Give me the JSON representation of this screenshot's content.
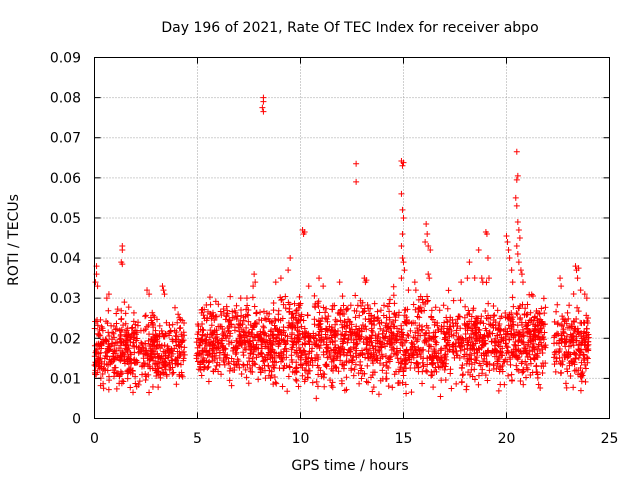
{
  "chart_data": {
    "type": "scatter",
    "title": "Day 196 of 2021, Rate Of TEC Index for receiver abpo",
    "xlabel": "GPS time / hours",
    "ylabel": "ROTI / TECUs",
    "xlim": [
      0,
      25
    ],
    "ylim": [
      0,
      0.09
    ],
    "xticks": [
      0,
      5,
      10,
      15,
      20,
      25
    ],
    "xtick_labels": [
      "0",
      "5",
      "10",
      "15",
      "20",
      "25"
    ],
    "yticks": [
      0,
      0.01,
      0.02,
      0.03,
      0.04,
      0.05,
      0.06,
      0.07,
      0.08,
      0.09
    ],
    "ytick_labels": [
      "0",
      "0.01",
      "0.02",
      "0.03",
      "0.04",
      "0.05",
      "0.06",
      "0.07",
      "0.08",
      "0.09"
    ],
    "grid": true,
    "marker": "plus",
    "color": "#ff0000",
    "segments": [
      {
        "x": [
          0.0,
          4.4
        ],
        "y_low": 0.004,
        "y_high": 0.026
      },
      {
        "x": [
          4.95,
          21.9
        ],
        "y_low": 0.004,
        "y_high": 0.03
      },
      {
        "x": [
          22.3,
          24.0
        ],
        "y_low": 0.004,
        "y_high": 0.028
      }
    ],
    "outliers": [
      {
        "x": 0.1,
        "y": 0.038
      },
      {
        "x": 0.1,
        "y": 0.036
      },
      {
        "x": 0.05,
        "y": 0.034
      },
      {
        "x": 0.15,
        "y": 0.033
      },
      {
        "x": 0.6,
        "y": 0.03
      },
      {
        "x": 0.7,
        "y": 0.031
      },
      {
        "x": 1.35,
        "y": 0.043
      },
      {
        "x": 1.35,
        "y": 0.042
      },
      {
        "x": 1.3,
        "y": 0.039
      },
      {
        "x": 1.35,
        "y": 0.0385
      },
      {
        "x": 1.45,
        "y": 0.029
      },
      {
        "x": 2.55,
        "y": 0.032
      },
      {
        "x": 2.65,
        "y": 0.031
      },
      {
        "x": 3.3,
        "y": 0.033
      },
      {
        "x": 3.35,
        "y": 0.032
      },
      {
        "x": 3.4,
        "y": 0.031
      },
      {
        "x": 7.1,
        "y": 0.03
      },
      {
        "x": 7.4,
        "y": 0.03
      },
      {
        "x": 7.75,
        "y": 0.036
      },
      {
        "x": 7.8,
        "y": 0.034
      },
      {
        "x": 7.7,
        "y": 0.033
      },
      {
        "x": 8.2,
        "y": 0.08
      },
      {
        "x": 8.2,
        "y": 0.079
      },
      {
        "x": 8.15,
        "y": 0.0775
      },
      {
        "x": 8.2,
        "y": 0.0765
      },
      {
        "x": 8.8,
        "y": 0.034
      },
      {
        "x": 9.05,
        "y": 0.035
      },
      {
        "x": 9.4,
        "y": 0.037
      },
      {
        "x": 9.5,
        "y": 0.04
      },
      {
        "x": 10.1,
        "y": 0.047
      },
      {
        "x": 10.15,
        "y": 0.046
      },
      {
        "x": 10.2,
        "y": 0.0465
      },
      {
        "x": 10.4,
        "y": 0.033
      },
      {
        "x": 10.9,
        "y": 0.035
      },
      {
        "x": 11.1,
        "y": 0.033
      },
      {
        "x": 11.9,
        "y": 0.034
      },
      {
        "x": 12.7,
        "y": 0.0635
      },
      {
        "x": 12.7,
        "y": 0.059
      },
      {
        "x": 13.1,
        "y": 0.035
      },
      {
        "x": 13.15,
        "y": 0.034
      },
      {
        "x": 13.2,
        "y": 0.0345
      },
      {
        "x": 14.9,
        "y": 0.0642
      },
      {
        "x": 15.0,
        "y": 0.0638
      },
      {
        "x": 14.95,
        "y": 0.063
      },
      {
        "x": 14.9,
        "y": 0.056
      },
      {
        "x": 14.95,
        "y": 0.052
      },
      {
        "x": 15.0,
        "y": 0.05
      },
      {
        "x": 14.95,
        "y": 0.046
      },
      {
        "x": 14.9,
        "y": 0.043
      },
      {
        "x": 14.95,
        "y": 0.04
      },
      {
        "x": 15.0,
        "y": 0.039
      },
      {
        "x": 15.05,
        "y": 0.037
      },
      {
        "x": 14.9,
        "y": 0.035
      },
      {
        "x": 15.55,
        "y": 0.034
      },
      {
        "x": 15.6,
        "y": 0.032
      },
      {
        "x": 16.1,
        "y": 0.0485
      },
      {
        "x": 16.15,
        "y": 0.046
      },
      {
        "x": 16.05,
        "y": 0.044
      },
      {
        "x": 16.2,
        "y": 0.043
      },
      {
        "x": 16.3,
        "y": 0.042
      },
      {
        "x": 16.2,
        "y": 0.036
      },
      {
        "x": 16.25,
        "y": 0.035
      },
      {
        "x": 17.8,
        "y": 0.034
      },
      {
        "x": 18.1,
        "y": 0.035
      },
      {
        "x": 18.2,
        "y": 0.039
      },
      {
        "x": 18.65,
        "y": 0.042
      },
      {
        "x": 18.8,
        "y": 0.035
      },
      {
        "x": 18.85,
        "y": 0.034
      },
      {
        "x": 19.0,
        "y": 0.0465
      },
      {
        "x": 19.05,
        "y": 0.046
      },
      {
        "x": 19.1,
        "y": 0.04
      },
      {
        "x": 19.15,
        "y": 0.035
      },
      {
        "x": 20.0,
        "y": 0.0455
      },
      {
        "x": 20.05,
        "y": 0.044
      },
      {
        "x": 20.1,
        "y": 0.042
      },
      {
        "x": 20.15,
        "y": 0.04
      },
      {
        "x": 20.25,
        "y": 0.037
      },
      {
        "x": 20.3,
        "y": 0.034
      },
      {
        "x": 20.5,
        "y": 0.0665
      },
      {
        "x": 20.55,
        "y": 0.0605
      },
      {
        "x": 20.5,
        "y": 0.0595
      },
      {
        "x": 20.45,
        "y": 0.055
      },
      {
        "x": 20.5,
        "y": 0.053
      },
      {
        "x": 20.55,
        "y": 0.049
      },
      {
        "x": 20.6,
        "y": 0.047
      },
      {
        "x": 20.65,
        "y": 0.045
      },
      {
        "x": 20.5,
        "y": 0.043
      },
      {
        "x": 20.55,
        "y": 0.041
      },
      {
        "x": 20.6,
        "y": 0.039
      },
      {
        "x": 20.7,
        "y": 0.037
      },
      {
        "x": 20.75,
        "y": 0.036
      },
      {
        "x": 20.8,
        "y": 0.034
      },
      {
        "x": 22.6,
        "y": 0.035
      },
      {
        "x": 22.65,
        "y": 0.033
      },
      {
        "x": 23.35,
        "y": 0.038
      },
      {
        "x": 23.4,
        "y": 0.037
      },
      {
        "x": 23.5,
        "y": 0.0375
      },
      {
        "x": 23.45,
        "y": 0.035
      },
      {
        "x": 23.6,
        "y": 0.032
      },
      {
        "x": 23.8,
        "y": 0.031
      },
      {
        "x": 23.9,
        "y": 0.03
      }
    ]
  }
}
